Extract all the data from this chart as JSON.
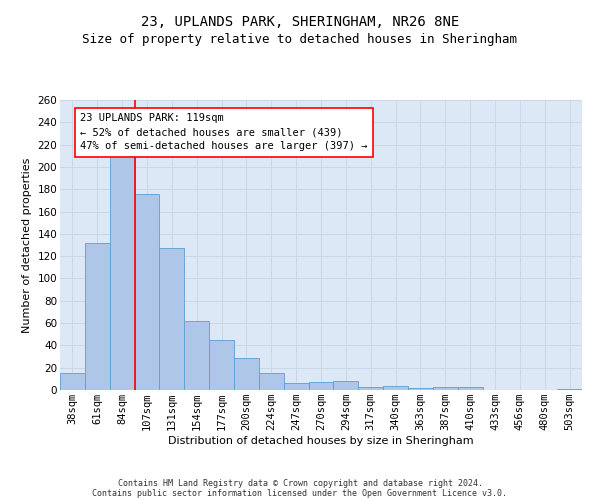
{
  "title": "23, UPLANDS PARK, SHERINGHAM, NR26 8NE",
  "subtitle": "Size of property relative to detached houses in Sheringham",
  "xlabel": "Distribution of detached houses by size in Sheringham",
  "ylabel": "Number of detached properties",
  "categories": [
    "38sqm",
    "61sqm",
    "84sqm",
    "107sqm",
    "131sqm",
    "154sqm",
    "177sqm",
    "200sqm",
    "224sqm",
    "247sqm",
    "270sqm",
    "294sqm",
    "317sqm",
    "340sqm",
    "363sqm",
    "387sqm",
    "410sqm",
    "433sqm",
    "456sqm",
    "480sqm",
    "503sqm"
  ],
  "values": [
    15,
    132,
    213,
    176,
    127,
    62,
    45,
    29,
    15,
    6,
    7,
    8,
    3,
    4,
    2,
    3,
    3,
    0,
    0,
    0,
    1
  ],
  "bar_color": "#aec6e8",
  "bar_edgecolor": "#5a9fd4",
  "grid_color": "#c8d8e8",
  "background_color": "#dce8f5",
  "annotation_text": "23 UPLANDS PARK: 119sqm\n← 52% of detached houses are smaller (439)\n47% of semi-detached houses are larger (397) →",
  "annotation_box_edgecolor": "red",
  "vline_x": 2.5,
  "vline_color": "red",
  "ylim": [
    0,
    260
  ],
  "yticks": [
    0,
    20,
    40,
    60,
    80,
    100,
    120,
    140,
    160,
    180,
    200,
    220,
    240,
    260
  ],
  "footnote1": "Contains HM Land Registry data © Crown copyright and database right 2024.",
  "footnote2": "Contains public sector information licensed under the Open Government Licence v3.0.",
  "title_fontsize": 10,
  "subtitle_fontsize": 9,
  "axis_fontsize": 8,
  "tick_fontsize": 7.5,
  "annot_fontsize": 7.5,
  "footnote_fontsize": 6
}
